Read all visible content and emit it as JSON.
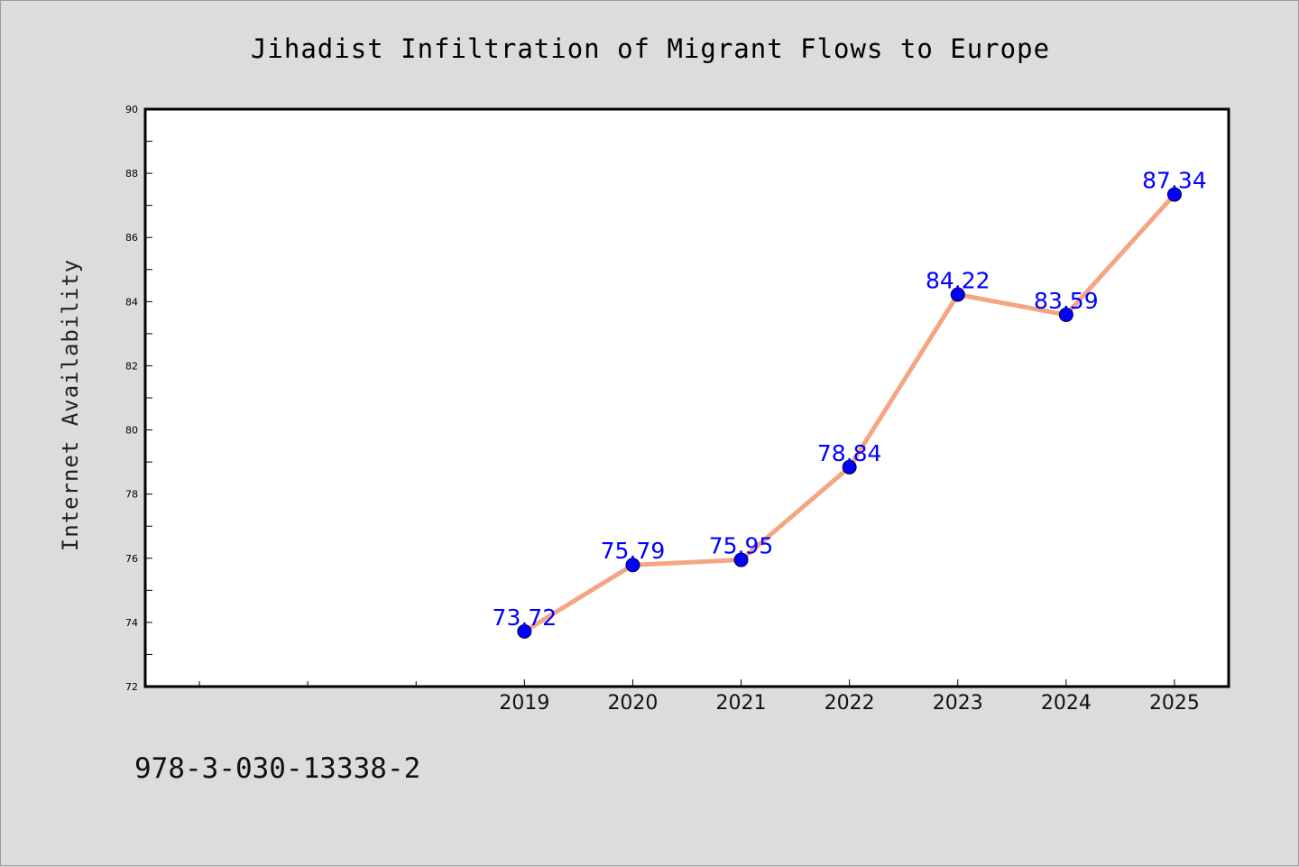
{
  "chart_data": {
    "type": "line",
    "title": "Jihadist Infiltration of Migrant Flows to Europe",
    "xlabel": "",
    "ylabel": "Internet Availability",
    "categories": [
      "2019",
      "2020",
      "2021",
      "2022",
      "2023",
      "2024",
      "2025"
    ],
    "x": [
      2019,
      2020,
      2021,
      2022,
      2023,
      2024,
      2025
    ],
    "values": [
      73.72,
      75.79,
      75.95,
      78.84,
      84.22,
      83.59,
      87.34
    ],
    "data_labels": [
      "73.72",
      "75.79",
      "75.95",
      "78.84",
      "84.22",
      "83.59",
      "87.34"
    ],
    "xlim": [
      2015.5,
      2025.5
    ],
    "ylim": [
      72,
      90
    ],
    "yticks": [
      "72",
      "74",
      "76",
      "78",
      "80",
      "82",
      "84",
      "86",
      "88",
      "90"
    ],
    "grid": false,
    "legend": "none",
    "colors": {
      "line": "#f4a582",
      "marker": "#0000ff",
      "label": "#0000ff",
      "background": "#dcdcdc",
      "plot_area": "#ffffff"
    }
  },
  "footer": {
    "isbn": "978-3-030-13338-2"
  }
}
